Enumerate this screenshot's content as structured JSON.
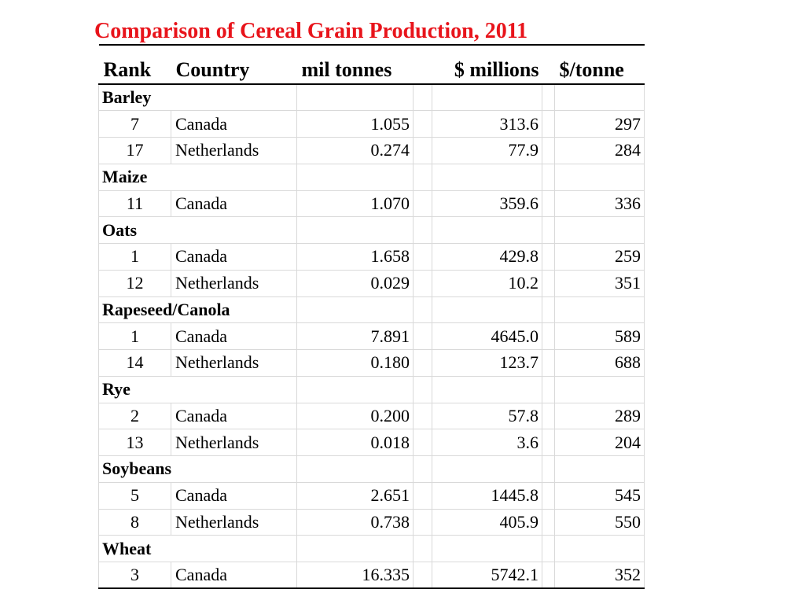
{
  "title": "Comparison of Cereal Grain Production, 2011",
  "headers": {
    "rank": "Rank",
    "country": "Country",
    "mil_tonnes": "mil tonnes",
    "millions": "$ millions",
    "per_tonne": "$/tonne"
  },
  "groups": [
    {
      "name": "Barley",
      "rows": [
        {
          "rank": "7",
          "country": "Canada",
          "mil_tonnes": "1.055",
          "millions": "313.6",
          "per_tonne": "297"
        },
        {
          "rank": "17",
          "country": "Netherlands",
          "mil_tonnes": "0.274",
          "millions": "77.9",
          "per_tonne": "284"
        }
      ]
    },
    {
      "name": "Maize",
      "rows": [
        {
          "rank": "11",
          "country": "Canada",
          "mil_tonnes": "1.070",
          "millions": "359.6",
          "per_tonne": "336"
        }
      ]
    },
    {
      "name": "Oats",
      "rows": [
        {
          "rank": "1",
          "country": "Canada",
          "mil_tonnes": "1.658",
          "millions": "429.8",
          "per_tonne": "259"
        },
        {
          "rank": "12",
          "country": "Netherlands",
          "mil_tonnes": "0.029",
          "millions": "10.2",
          "per_tonne": "351"
        }
      ]
    },
    {
      "name": "Rapeseed/Canola",
      "rows": [
        {
          "rank": "1",
          "country": "Canada",
          "mil_tonnes": "7.891",
          "millions": "4645.0",
          "per_tonne": "589"
        },
        {
          "rank": "14",
          "country": "Netherlands",
          "mil_tonnes": "0.180",
          "millions": "123.7",
          "per_tonne": "688"
        }
      ]
    },
    {
      "name": "Rye",
      "rows": [
        {
          "rank": "2",
          "country": "Canada",
          "mil_tonnes": "0.200",
          "millions": "57.8",
          "per_tonne": "289"
        },
        {
          "rank": "13",
          "country": "Netherlands",
          "mil_tonnes": "0.018",
          "millions": "3.6",
          "per_tonne": "204"
        }
      ]
    },
    {
      "name": "Soybeans",
      "rows": [
        {
          "rank": "5",
          "country": "Canada",
          "mil_tonnes": "2.651",
          "millions": "1445.8",
          "per_tonne": "545"
        },
        {
          "rank": "8",
          "country": "Netherlands",
          "mil_tonnes": "0.738",
          "millions": "405.9",
          "per_tonne": "550"
        }
      ]
    },
    {
      "name": "Wheat",
      "rows": [
        {
          "rank": "3",
          "country": "Canada",
          "mil_tonnes": "16.335",
          "millions": "5742.1",
          "per_tonne": "352"
        }
      ]
    }
  ],
  "colors": {
    "title": "#e8141b",
    "grid": "#d9d9d9",
    "text": "#000000"
  }
}
